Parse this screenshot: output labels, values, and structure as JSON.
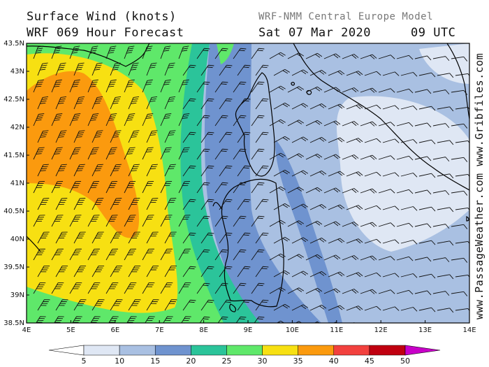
{
  "header": {
    "title_line1": "Surface Wind (knots)",
    "title_line2": "WRF 069 Hour Forecast",
    "model": "WRF-NMM Central Europe Model",
    "date": "Sat 07 Mar 2020",
    "time": "09 UTC"
  },
  "watermark": "www.PassageWeather.com   www.Gribfiles.com",
  "map": {
    "lon_range": [
      4,
      14
    ],
    "lat_range": [
      38.5,
      43.5
    ],
    "lon_ticks": [
      "4E",
      "5E",
      "6E",
      "7E",
      "8E",
      "9E",
      "10E",
      "11E",
      "12E",
      "13E",
      "14E"
    ],
    "lat_ticks": [
      "43.5N",
      "43N",
      "42.5N",
      "42N",
      "41.5N",
      "41N",
      "40.5N",
      "40N",
      "39.5N",
      "39N",
      "38.5N"
    ]
  },
  "colorbar": {
    "labels": [
      "5",
      "10",
      "15",
      "20",
      "25",
      "30",
      "35",
      "40",
      "45",
      "50"
    ],
    "colors": [
      "#ffffff",
      "#dfe7f4",
      "#a9c0e2",
      "#6f93cf",
      "#2bc49a",
      "#5fe86a",
      "#f7e012",
      "#fb9a0e",
      "#f2413e",
      "#c00010",
      "#c800c8"
    ]
  }
}
